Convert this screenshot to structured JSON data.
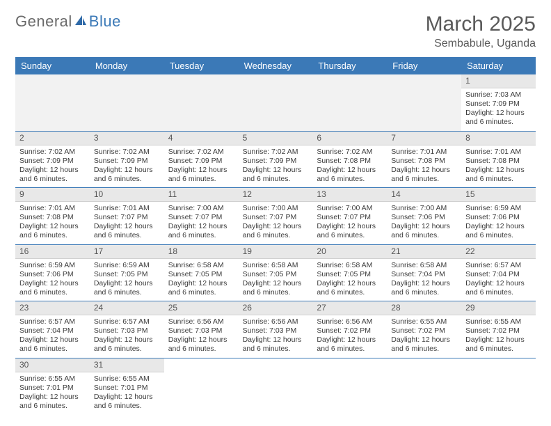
{
  "logo": {
    "text1": "General",
    "text2": "Blue"
  },
  "title": "March 2025",
  "subtitle": "Sembabule, Uganda",
  "colors": {
    "header_bg": "#3b79b7",
    "header_fg": "#ffffff",
    "daynum_bg": "#e8e8e8",
    "border": "#3b79b7",
    "text": "#3b3b3b",
    "title": "#5a5a5a"
  },
  "dayNames": [
    "Sunday",
    "Monday",
    "Tuesday",
    "Wednesday",
    "Thursday",
    "Friday",
    "Saturday"
  ],
  "labels": {
    "sunrise": "Sunrise:",
    "sunset": "Sunset:",
    "daylight": "Daylight:"
  },
  "leadingBlanks": 6,
  "trailingBlanks": 5,
  "days": [
    {
      "n": 1,
      "sr": "7:03 AM",
      "ss": "7:09 PM",
      "dl": "12 hours and 6 minutes."
    },
    {
      "n": 2,
      "sr": "7:02 AM",
      "ss": "7:09 PM",
      "dl": "12 hours and 6 minutes."
    },
    {
      "n": 3,
      "sr": "7:02 AM",
      "ss": "7:09 PM",
      "dl": "12 hours and 6 minutes."
    },
    {
      "n": 4,
      "sr": "7:02 AM",
      "ss": "7:09 PM",
      "dl": "12 hours and 6 minutes."
    },
    {
      "n": 5,
      "sr": "7:02 AM",
      "ss": "7:09 PM",
      "dl": "12 hours and 6 minutes."
    },
    {
      "n": 6,
      "sr": "7:02 AM",
      "ss": "7:08 PM",
      "dl": "12 hours and 6 minutes."
    },
    {
      "n": 7,
      "sr": "7:01 AM",
      "ss": "7:08 PM",
      "dl": "12 hours and 6 minutes."
    },
    {
      "n": 8,
      "sr": "7:01 AM",
      "ss": "7:08 PM",
      "dl": "12 hours and 6 minutes."
    },
    {
      "n": 9,
      "sr": "7:01 AM",
      "ss": "7:08 PM",
      "dl": "12 hours and 6 minutes."
    },
    {
      "n": 10,
      "sr": "7:01 AM",
      "ss": "7:07 PM",
      "dl": "12 hours and 6 minutes."
    },
    {
      "n": 11,
      "sr": "7:00 AM",
      "ss": "7:07 PM",
      "dl": "12 hours and 6 minutes."
    },
    {
      "n": 12,
      "sr": "7:00 AM",
      "ss": "7:07 PM",
      "dl": "12 hours and 6 minutes."
    },
    {
      "n": 13,
      "sr": "7:00 AM",
      "ss": "7:07 PM",
      "dl": "12 hours and 6 minutes."
    },
    {
      "n": 14,
      "sr": "7:00 AM",
      "ss": "7:06 PM",
      "dl": "12 hours and 6 minutes."
    },
    {
      "n": 15,
      "sr": "6:59 AM",
      "ss": "7:06 PM",
      "dl": "12 hours and 6 minutes."
    },
    {
      "n": 16,
      "sr": "6:59 AM",
      "ss": "7:06 PM",
      "dl": "12 hours and 6 minutes."
    },
    {
      "n": 17,
      "sr": "6:59 AM",
      "ss": "7:05 PM",
      "dl": "12 hours and 6 minutes."
    },
    {
      "n": 18,
      "sr": "6:58 AM",
      "ss": "7:05 PM",
      "dl": "12 hours and 6 minutes."
    },
    {
      "n": 19,
      "sr": "6:58 AM",
      "ss": "7:05 PM",
      "dl": "12 hours and 6 minutes."
    },
    {
      "n": 20,
      "sr": "6:58 AM",
      "ss": "7:05 PM",
      "dl": "12 hours and 6 minutes."
    },
    {
      "n": 21,
      "sr": "6:58 AM",
      "ss": "7:04 PM",
      "dl": "12 hours and 6 minutes."
    },
    {
      "n": 22,
      "sr": "6:57 AM",
      "ss": "7:04 PM",
      "dl": "12 hours and 6 minutes."
    },
    {
      "n": 23,
      "sr": "6:57 AM",
      "ss": "7:04 PM",
      "dl": "12 hours and 6 minutes."
    },
    {
      "n": 24,
      "sr": "6:57 AM",
      "ss": "7:03 PM",
      "dl": "12 hours and 6 minutes."
    },
    {
      "n": 25,
      "sr": "6:56 AM",
      "ss": "7:03 PM",
      "dl": "12 hours and 6 minutes."
    },
    {
      "n": 26,
      "sr": "6:56 AM",
      "ss": "7:03 PM",
      "dl": "12 hours and 6 minutes."
    },
    {
      "n": 27,
      "sr": "6:56 AM",
      "ss": "7:02 PM",
      "dl": "12 hours and 6 minutes."
    },
    {
      "n": 28,
      "sr": "6:55 AM",
      "ss": "7:02 PM",
      "dl": "12 hours and 6 minutes."
    },
    {
      "n": 29,
      "sr": "6:55 AM",
      "ss": "7:02 PM",
      "dl": "12 hours and 6 minutes."
    },
    {
      "n": 30,
      "sr": "6:55 AM",
      "ss": "7:01 PM",
      "dl": "12 hours and 6 minutes."
    },
    {
      "n": 31,
      "sr": "6:55 AM",
      "ss": "7:01 PM",
      "dl": "12 hours and 6 minutes."
    }
  ]
}
